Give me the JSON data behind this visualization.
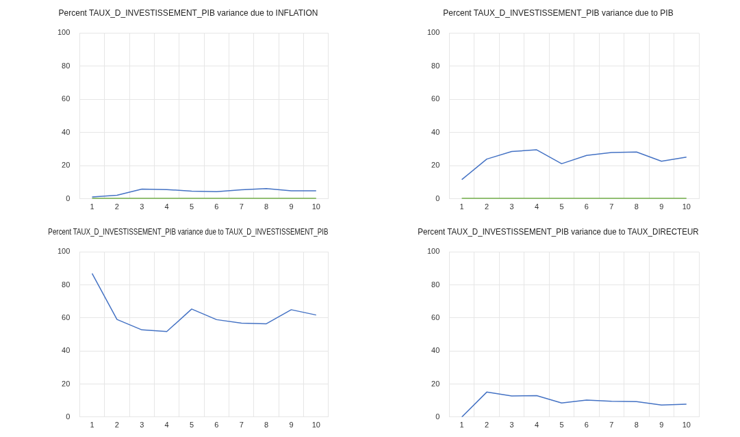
{
  "chart_data": [
    {
      "type": "line",
      "title": "Percent TAUX_D_INVESTISSEMENT_PIB variance due to INFLATION",
      "categories": [
        "1",
        "2",
        "3",
        "4",
        "5",
        "6",
        "7",
        "8",
        "9",
        "10"
      ],
      "series": [
        {
          "color": "#4472c4",
          "values": [
            1.2,
            2.2,
            5.9,
            5.6,
            4.7,
            4.4,
            5.5,
            6.2,
            4.9,
            4.9
          ]
        },
        {
          "color": "#70ad47",
          "values": [
            0,
            0,
            0,
            0,
            0,
            0,
            0,
            0,
            0,
            0
          ]
        }
      ],
      "ylim": [
        0,
        100
      ],
      "yticks": [
        0,
        20,
        40,
        60,
        80,
        100
      ],
      "grid": true,
      "legend": false,
      "marker": "none"
    },
    {
      "type": "line",
      "title": "Percent TAUX_D_INVESTISSEMENT_PIB variance due to PIB",
      "categories": [
        "1",
        "2",
        "3",
        "4",
        "5",
        "6",
        "7",
        "8",
        "9",
        "10"
      ],
      "series": [
        {
          "color": "#4472c4",
          "values": [
            11.6,
            24,
            28.6,
            29.6,
            21.2,
            26.2,
            28,
            28.3,
            22.7,
            25.2
          ]
        },
        {
          "color": "#70ad47",
          "values": [
            0,
            0,
            0,
            0,
            0,
            0,
            0,
            0,
            0,
            0
          ]
        }
      ],
      "ylim": [
        0,
        100
      ],
      "yticks": [
        0,
        20,
        40,
        60,
        80,
        100
      ],
      "grid": true,
      "legend": false,
      "marker": "none"
    },
    {
      "type": "line",
      "title": "Percent TAUX_D_INVESTISSEMENT_PIB variance due to TAUX_D_INVESTISSEMENT_PIB",
      "categories": [
        "1",
        "2",
        "3",
        "4",
        "5",
        "6",
        "7",
        "8",
        "9",
        "10"
      ],
      "series": [
        {
          "color": "#4472c4",
          "values": [
            87,
            59.1,
            52.8,
            51.8,
            65.4,
            59,
            56.9,
            56.5,
            65,
            61.8
          ]
        }
      ],
      "ylim": [
        0,
        100
      ],
      "yticks": [
        0,
        20,
        40,
        60,
        80,
        100
      ],
      "grid": true,
      "legend": false,
      "marker": "none"
    },
    {
      "type": "line",
      "title": "Percent TAUX_D_INVESTISSEMENT_PIB variance due to TAUX_DIRECTEUR",
      "categories": [
        "1",
        "2",
        "3",
        "4",
        "5",
        "6",
        "7",
        "8",
        "9",
        "10"
      ],
      "series": [
        {
          "color": "#4472c4",
          "values": [
            0,
            15.1,
            12.8,
            13,
            8.5,
            10.3,
            9.6,
            9.3,
            7.3,
            7.8
          ]
        }
      ],
      "ylim": [
        0,
        100
      ],
      "yticks": [
        0,
        20,
        40,
        60,
        80,
        100
      ],
      "grid": true,
      "legend": false,
      "marker": "none"
    }
  ]
}
